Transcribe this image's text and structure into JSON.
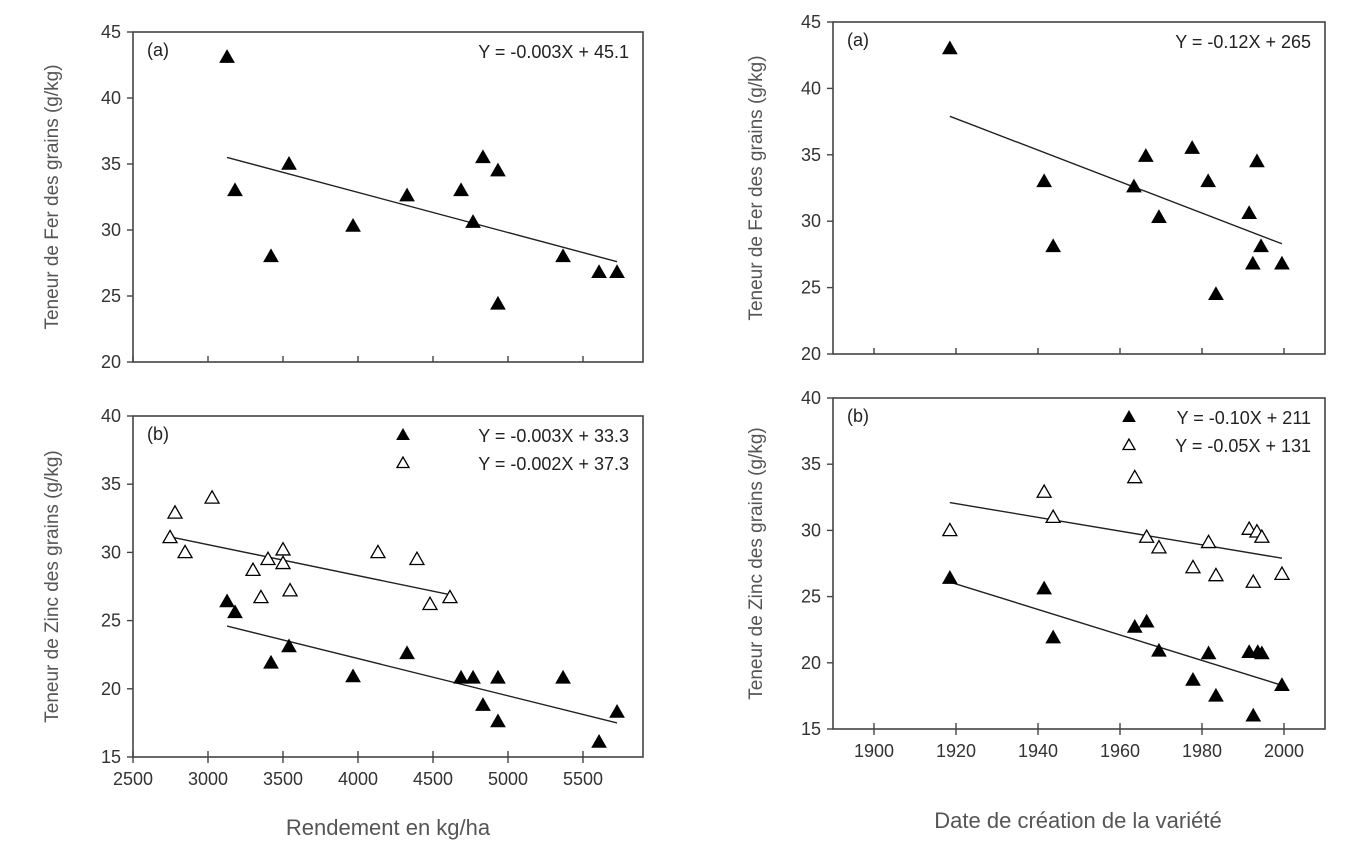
{
  "chart_data": [
    {
      "type": "scatter",
      "panel": "top-left",
      "label": "(a)",
      "ylabel": "Teneur de Fer des grains (g/kg)",
      "xlabel": "",
      "xlim": [
        2500,
        5900
      ],
      "ylim": [
        20,
        45
      ],
      "xticks": [
        2500,
        3000,
        3500,
        4000,
        4500,
        5000,
        5500
      ],
      "xtick_labels": [],
      "yticks": [
        20,
        25,
        30,
        35,
        40,
        45
      ],
      "ytick_labels": [
        "20",
        "25",
        "30",
        "35",
        "40",
        "45"
      ],
      "legend_markers": false,
      "series": [
        {
          "name": "Y = -0.003X + 45.1",
          "marker": "filled-triangle",
          "x": [
            3127,
            3180,
            3420,
            3540,
            3967,
            4327,
            4687,
            4767,
            4833,
            4933,
            4933,
            5367,
            5607,
            5727
          ],
          "y": [
            43.1,
            33.0,
            28.0,
            35.0,
            30.3,
            32.6,
            33.0,
            30.6,
            35.5,
            34.5,
            24.4,
            28.0,
            26.8,
            26.8
          ],
          "fit_line": {
            "x": [
              3127,
              5727
            ],
            "y": [
              35.5,
              27.6
            ]
          }
        }
      ]
    },
    {
      "type": "scatter",
      "panel": "bottom-left",
      "label": "(b)",
      "ylabel": "Teneur de Zinc des grains (g/kg)",
      "xlabel": "Rendement en kg/ha",
      "xlim": [
        2500,
        5900
      ],
      "ylim": [
        15,
        40
      ],
      "xticks": [
        2500,
        3000,
        3500,
        4000,
        4500,
        5000,
        5500
      ],
      "xtick_labels": [
        "2500",
        "3000",
        "3500",
        "4000",
        "4500",
        "5000",
        "5500"
      ],
      "yticks": [
        15,
        20,
        25,
        30,
        35,
        40
      ],
      "ytick_labels": [
        "15",
        "20",
        "25",
        "30",
        "35",
        "40"
      ],
      "legend_markers": true,
      "series": [
        {
          "name": "Y = -0.003X + 33.3",
          "marker": "filled-triangle",
          "x": [
            3127,
            3180,
            3420,
            3540,
            3967,
            4327,
            4687,
            4767,
            4833,
            4933,
            4933,
            5367,
            5607,
            5727
          ],
          "y": [
            26.4,
            25.6,
            21.9,
            23.1,
            20.9,
            22.6,
            20.8,
            20.8,
            18.8,
            20.8,
            17.6,
            20.8,
            16.1,
            18.3
          ],
          "fit_line": {
            "x": [
              3127,
              5727
            ],
            "y": [
              24.6,
              17.5
            ]
          }
        },
        {
          "name": "Y = -0.002X + 37.3",
          "marker": "open-triangle",
          "x": [
            2747,
            2780,
            2847,
            3027,
            3300,
            3353,
            3400,
            3500,
            3500,
            3547,
            4133,
            4393,
            4480,
            4613
          ],
          "y": [
            31.1,
            32.9,
            30.0,
            34.0,
            28.7,
            26.7,
            29.5,
            30.2,
            29.2,
            27.2,
            30.0,
            29.5,
            26.2,
            26.7
          ],
          "fit_line": {
            "x": [
              2767,
              4613
            ],
            "y": [
              31.1,
              26.9
            ]
          }
        }
      ]
    },
    {
      "type": "scatter",
      "panel": "top-right",
      "label": "(a)",
      "ylabel": "Teneur de Fer des grains (g/kg)",
      "xlabel": "",
      "xlim": [
        1890,
        2010
      ],
      "ylim": [
        20,
        45
      ],
      "xticks": [
        1900,
        1920,
        1940,
        1960,
        1980,
        2000
      ],
      "xtick_labels": [],
      "yticks": [
        20,
        25,
        30,
        35,
        40,
        45
      ],
      "ytick_labels": [
        "20",
        "25",
        "30",
        "35",
        "40",
        "45"
      ],
      "legend_markers": false,
      "series": [
        {
          "name": "Y = -0.12X + 265",
          "marker": "filled-triangle",
          "x": [
            1918.5,
            1941.5,
            1943.7,
            1963.4,
            1966.3,
            1969.5,
            1977.6,
            1981.5,
            1983.4,
            1991.5,
            1992.4,
            1993.4,
            1994.4,
            1999.5
          ],
          "y": [
            43.0,
            33.0,
            28.1,
            32.6,
            34.9,
            30.3,
            35.5,
            33.0,
            24.5,
            30.6,
            26.8,
            34.5,
            28.1,
            26.8
          ],
          "fit_line": {
            "x": [
              1918.5,
              1999.5
            ],
            "y": [
              37.9,
              28.3
            ]
          }
        }
      ]
    },
    {
      "type": "scatter",
      "panel": "bottom-right",
      "label": "(b)",
      "ylabel": "Teneur de Zinc des grains (g/kg)",
      "xlabel": "Date de création de la variété",
      "xlim": [
        1890,
        2010
      ],
      "ylim": [
        15,
        40
      ],
      "xticks": [
        1900,
        1920,
        1940,
        1960,
        1980,
        2000
      ],
      "xtick_labels": [
        "1900",
        "1920",
        "1940",
        "1960",
        "1980",
        "2000"
      ],
      "yticks": [
        15,
        20,
        25,
        30,
        35,
        40
      ],
      "ytick_labels": [
        "15",
        "20",
        "25",
        "30",
        "35",
        "40"
      ],
      "legend_markers": true,
      "series": [
        {
          "name": "Y = -0.10X + 211",
          "marker": "filled-triangle",
          "x": [
            1918.5,
            1941.5,
            1943.7,
            1963.6,
            1966.5,
            1969.5,
            1977.8,
            1981.6,
            1983.4,
            1991.5,
            1992.5,
            1993.6,
            1994.6,
            1999.5
          ],
          "y": [
            26.4,
            25.6,
            21.9,
            22.7,
            23.1,
            20.9,
            18.7,
            20.7,
            17.5,
            20.8,
            16.0,
            20.8,
            20.7,
            18.3
          ],
          "fit_line": {
            "x": [
              1918.5,
              1999.5
            ],
            "y": [
              26.1,
              18.3
            ]
          }
        },
        {
          "name": "Y = -0.05X + 131",
          "marker": "open-triangle",
          "x": [
            1918.5,
            1941.5,
            1943.7,
            1963.6,
            1966.5,
            1969.5,
            1977.8,
            1981.6,
            1983.4,
            1991.5,
            1992.5,
            1993.4,
            1994.6,
            1999.5
          ],
          "y": [
            30.0,
            32.9,
            31.0,
            34.0,
            29.5,
            28.7,
            27.2,
            29.1,
            26.6,
            30.1,
            26.1,
            29.9,
            29.5,
            26.7
          ],
          "fit_line": {
            "x": [
              1918.5,
              1999.5
            ],
            "y": [
              32.1,
              27.9
            ]
          }
        }
      ]
    }
  ]
}
